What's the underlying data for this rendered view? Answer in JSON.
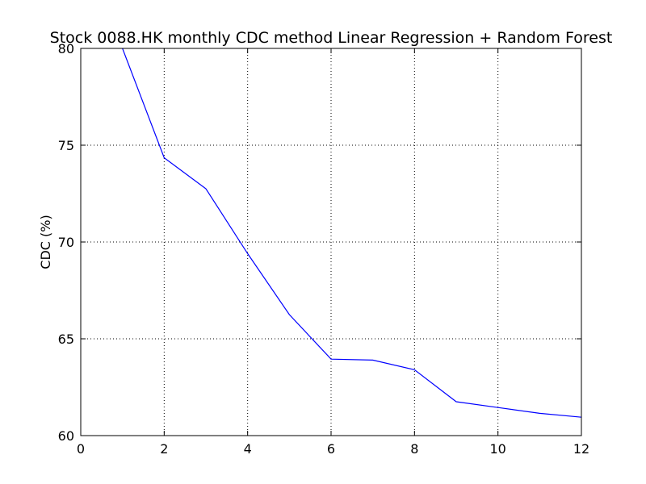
{
  "chart_data": {
    "type": "line",
    "title": "Stock 0088.HK monthly CDC method Linear Regression + Random Forest",
    "xlabel": "",
    "ylabel": "CDC (%)",
    "xlim": [
      0,
      12
    ],
    "ylim": [
      60,
      80
    ],
    "xticks": [
      0,
      2,
      4,
      6,
      8,
      10,
      12
    ],
    "yticks": [
      60,
      65,
      70,
      75,
      80
    ],
    "grid": true,
    "series": [
      {
        "color": "#0000ff",
        "x": [
          1,
          2,
          3,
          4,
          5,
          6,
          7,
          8,
          9,
          10,
          11,
          12
        ],
        "y": [
          80.0,
          74.35,
          72.75,
          69.4,
          66.25,
          63.95,
          63.9,
          63.4,
          61.75,
          61.45,
          61.15,
          60.95
        ]
      }
    ]
  }
}
